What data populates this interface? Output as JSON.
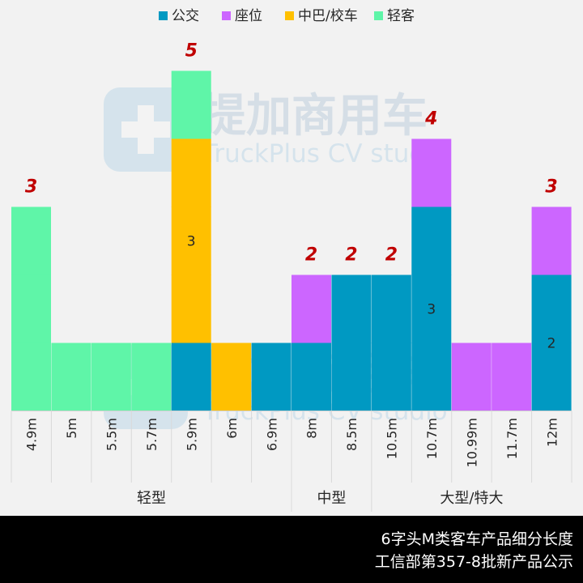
{
  "chart_data": {
    "type": "bar",
    "stacked": true,
    "categories": [
      "4.9m",
      "5m",
      "5.5m",
      "5.7m",
      "5.9m",
      "6m",
      "6.9m",
      "8m",
      "8.5m",
      "10.5m",
      "10.7m",
      "10.99m",
      "11.7m",
      "12m"
    ],
    "groups": [
      {
        "label": "轻型",
        "from": 0,
        "to": 6
      },
      {
        "label": "中型",
        "from": 7,
        "to": 8
      },
      {
        "label": "大型/特大",
        "from": 9,
        "to": 13
      }
    ],
    "series": [
      {
        "name": "公交",
        "color": "#0099c2",
        "values": [
          0,
          0,
          0,
          0,
          1,
          0,
          1,
          1,
          2,
          2,
          3,
          0,
          0,
          2
        ]
      },
      {
        "name": "座位",
        "color": "#cc66ff",
        "values": [
          0,
          0,
          0,
          0,
          0,
          0,
          0,
          1,
          0,
          0,
          1,
          1,
          1,
          1
        ]
      },
      {
        "name": "中巴/校车",
        "color": "#ffc000",
        "values": [
          0,
          0,
          0,
          0,
          3,
          1,
          0,
          0,
          0,
          0,
          0,
          0,
          0,
          0
        ]
      },
      {
        "name": "轻客",
        "color": "#5ff5a8",
        "values": [
          3,
          1,
          1,
          1,
          1,
          0,
          0,
          0,
          0,
          0,
          0,
          0,
          0,
          0
        ]
      }
    ],
    "totals": [
      "3",
      "",
      "",
      "",
      "5",
      "",
      "",
      "2",
      "2",
      "2",
      "4",
      "",
      "",
      "3"
    ],
    "segment_labels": [
      {
        "index": 4,
        "series": 2,
        "text": "3"
      },
      {
        "index": 10,
        "series": 0,
        "text": "3"
      },
      {
        "index": 13,
        "series": 0,
        "text": "2"
      }
    ],
    "ylim": [
      0,
      5.2
    ],
    "legend": "top",
    "grid": false
  },
  "watermark": {
    "cn": "提加商用车",
    "en": "TruckPlus CV studio"
  },
  "footer": {
    "line1": "6字头M类客车产品细分长度",
    "line2": "工信部第357-8批新产品公示"
  }
}
